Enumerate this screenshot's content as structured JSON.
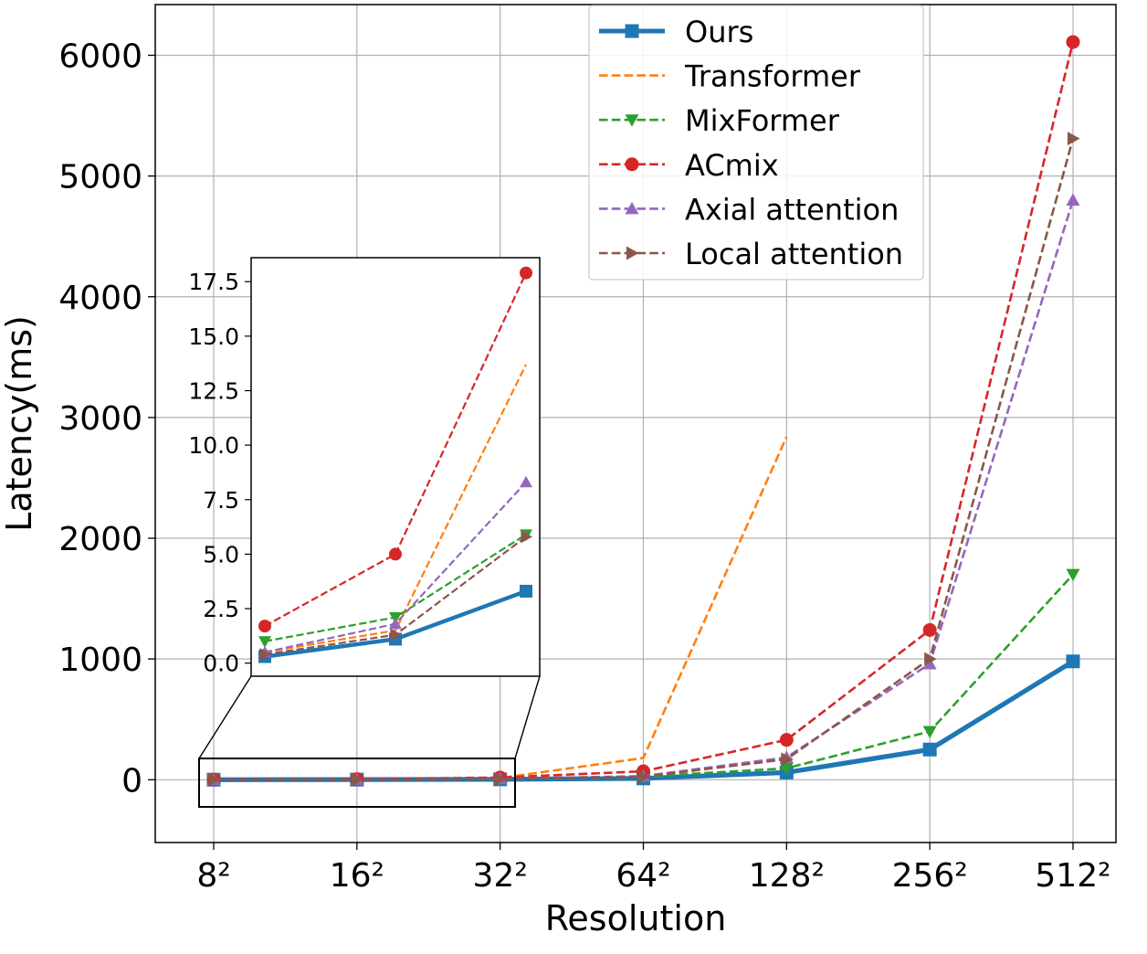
{
  "chart_data": {
    "type": "line",
    "title": "",
    "xlabel": "Resolution",
    "ylabel": "Latency(ms)",
    "categories": [
      "8²",
      "16²",
      "32²",
      "64²",
      "128²",
      "256²",
      "512²"
    ],
    "yticks": [
      "0",
      "1000",
      "2000",
      "3000",
      "4000",
      "5000",
      "6000"
    ],
    "ylim": [
      -520,
      6420
    ],
    "grid": true,
    "legend_position": "top-right",
    "series": [
      {
        "name": "Ours",
        "color": "#1f77b4",
        "style": "solid",
        "marker": "square",
        "values": [
          0.3,
          1.1,
          3.3,
          11,
          60,
          250,
          980
        ]
      },
      {
        "name": "Transformer",
        "color": "#ff7f0e",
        "style": "dashed",
        "marker": "none",
        "values": [
          0.5,
          1.5,
          13.7,
          180,
          2840,
          null,
          null
        ]
      },
      {
        "name": "MixFormer",
        "color": "#2ca02c",
        "style": "dashed",
        "marker": "triangle-down",
        "values": [
          1.0,
          2.1,
          5.9,
          25,
          95,
          400,
          1700
        ]
      },
      {
        "name": "ACmix",
        "color": "#d62728",
        "style": "dashed",
        "marker": "circle",
        "values": [
          1.7,
          5.0,
          17.9,
          70,
          330,
          1240,
          6110
        ]
      },
      {
        "name": "Axial attention",
        "color": "#9467bd",
        "style": "dashed",
        "marker": "triangle-up",
        "values": [
          0.5,
          1.8,
          8.3,
          30,
          185,
          960,
          4800
        ]
      },
      {
        "name": "Local attention",
        "color": "#8c564b",
        "style": "dashed",
        "marker": "triangle-right",
        "values": [
          0.4,
          1.3,
          5.8,
          25,
          170,
          1000,
          5310
        ]
      }
    ],
    "inset": {
      "categories": [
        "8²",
        "16²",
        "32²"
      ],
      "yticks": [
        "0.0",
        "2.5",
        "5.0",
        "7.5",
        "10.0",
        "12.5",
        "15.0",
        "17.5"
      ],
      "ylim": [
        -0.6,
        18.6
      ]
    }
  }
}
